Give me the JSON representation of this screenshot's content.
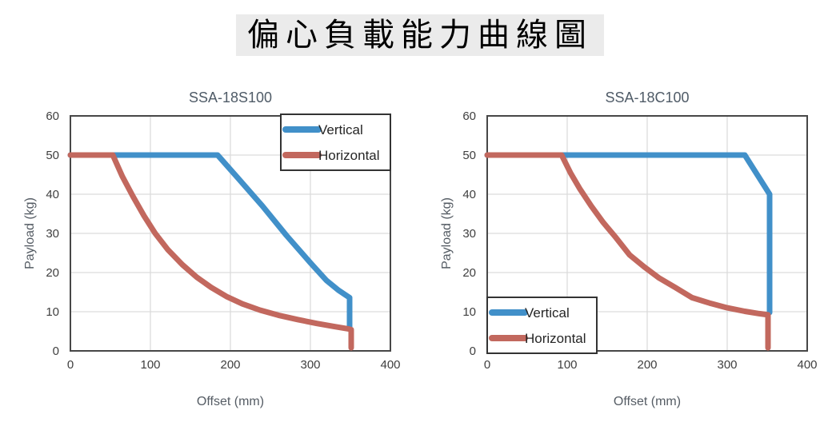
{
  "page": {
    "title": "偏心負載能力曲線圖"
  },
  "colors": {
    "vertical": "#4190c9",
    "horizontal": "#c2685e",
    "grid": "#dcdcdc",
    "plot_border": "#474747",
    "tick_label": "#3f3f3f",
    "axis_title": "#555c64",
    "chart_title": "#4f5b67",
    "legend_border": "#333333",
    "legend_text": "#262626",
    "title_background": "#ebebeb"
  },
  "chart_data": [
    {
      "type": "line",
      "title": "SSA-18S100",
      "xlabel": "Offset (mm)",
      "ylabel": "Payload (kg)",
      "xlim": [
        0,
        400
      ],
      "ylim": [
        0,
        60
      ],
      "xticks": [
        0,
        100,
        200,
        300,
        400
      ],
      "yticks": [
        0,
        10,
        20,
        30,
        40,
        50,
        60
      ],
      "grid": true,
      "legend_position": "top-right",
      "series": [
        {
          "name": "Vertical",
          "color_key": "vertical",
          "points": [
            [
              0,
              50
            ],
            [
              184,
              50
            ],
            [
              210,
              44
            ],
            [
              240,
              37
            ],
            [
              270,
              29.5
            ],
            [
              300,
              22.5
            ],
            [
              320,
              18
            ],
            [
              335,
              15.5
            ],
            [
              346,
              14
            ],
            [
              349,
              13.6
            ],
            [
              349,
              5.6
            ]
          ]
        },
        {
          "name": "Horizontal",
          "color_key": "horizontal",
          "points": [
            [
              0,
              50
            ],
            [
              53,
              50
            ],
            [
              65,
              44.5
            ],
            [
              78,
              39.5
            ],
            [
              92,
              34.5
            ],
            [
              106,
              30
            ],
            [
              122,
              25.8
            ],
            [
              140,
              22
            ],
            [
              158,
              18.8
            ],
            [
              176,
              16.2
            ],
            [
              195,
              13.9
            ],
            [
              215,
              12
            ],
            [
              237,
              10.4
            ],
            [
              260,
              9.1
            ],
            [
              284,
              8
            ],
            [
              308,
              7
            ],
            [
              330,
              6.2
            ],
            [
              348,
              5.6
            ],
            [
              351,
              5.4
            ],
            [
              351,
              0.8
            ]
          ]
        }
      ]
    },
    {
      "type": "line",
      "title": "SSA-18C100",
      "xlabel": "Offset (mm)",
      "ylabel": "Payload (kg)",
      "xlim": [
        0,
        400
      ],
      "ylim": [
        0,
        60
      ],
      "xticks": [
        0,
        100,
        200,
        300,
        400
      ],
      "yticks": [
        0,
        10,
        20,
        30,
        40,
        50,
        60
      ],
      "grid": true,
      "legend_position": "bottom-left",
      "series": [
        {
          "name": "Vertical",
          "color_key": "vertical",
          "points": [
            [
              0,
              50
            ],
            [
              322,
              50
            ],
            [
              353,
              40
            ],
            [
              353,
              9.8
            ]
          ]
        },
        {
          "name": "Horizontal",
          "color_key": "horizontal",
          "points": [
            [
              0,
              50
            ],
            [
              93,
              50
            ],
            [
              104,
              45.5
            ],
            [
              116,
              41.3
            ],
            [
              130,
              37
            ],
            [
              145,
              32.8
            ],
            [
              161,
              28.9
            ],
            [
              178,
              24.5
            ],
            [
              196,
              21.5
            ],
            [
              215,
              18.6
            ],
            [
              235,
              16.2
            ],
            [
              256,
              13.6
            ],
            [
              278,
              12.2
            ],
            [
              300,
              11
            ],
            [
              322,
              10.1
            ],
            [
              340,
              9.5
            ],
            [
              351,
              9.2
            ],
            [
              351,
              0.8
            ]
          ]
        }
      ]
    }
  ]
}
